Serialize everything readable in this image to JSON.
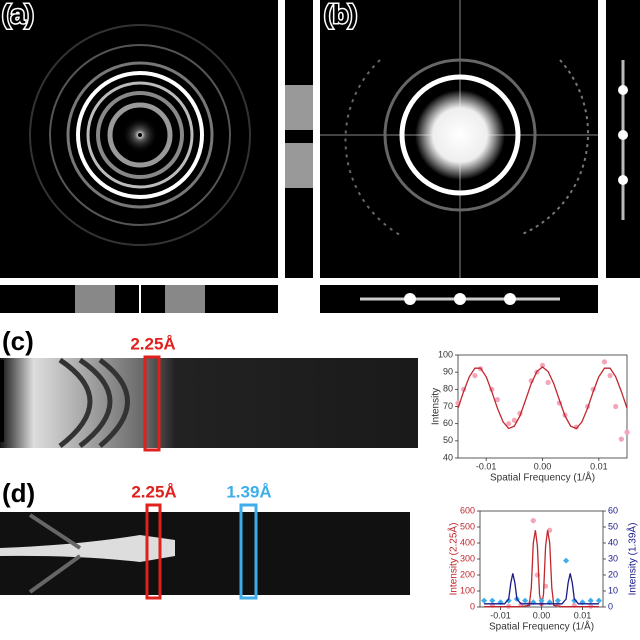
{
  "figure": {
    "panels": [
      "(a)",
      "(b)",
      "(c)",
      "(d)"
    ],
    "markers_c": [
      "2.25Å"
    ],
    "markers_d": [
      "2.25Å",
      "1.39Å"
    ]
  },
  "chart_data": [
    {
      "type": "line",
      "xlabel": "Spatial Frequency (1/Å)",
      "ylabel": "Intensity",
      "y_color": "#333333",
      "xlim": [
        -0.015,
        0.015
      ],
      "ylim": [
        40,
        100
      ],
      "xticks": [
        {
          "value": -0.01,
          "label": "-0.01"
        },
        {
          "value": 0,
          "label": "0.00"
        },
        {
          "value": 0.01,
          "label": "0.01"
        }
      ],
      "yticks": [
        40,
        50,
        60,
        70,
        80,
        90,
        100
      ],
      "series": [
        {
          "mode": "markers",
          "marker": "circle",
          "color": "#f4a6b8",
          "x": [
            -0.015,
            -0.014,
            -0.012,
            -0.011,
            -0.009,
            -0.008,
            -0.006,
            -0.005,
            -0.004,
            -0.002,
            -0.001,
            0,
            0.001,
            0.003,
            0.004,
            0.006,
            0.008,
            0.009,
            0.011,
            0.012,
            0.013,
            0.014,
            0.015
          ],
          "values": [
            72,
            80,
            88,
            92,
            80,
            74,
            60,
            62,
            66,
            85,
            90,
            94,
            84,
            72,
            65,
            58,
            70,
            80,
            96,
            88,
            70,
            51,
            55
          ]
        },
        {
          "mode": "line",
          "color": "#c0272d",
          "x": [
            -0.015,
            -0.014,
            -0.013,
            -0.012,
            -0.011,
            -0.01,
            -0.009,
            -0.008,
            -0.007,
            -0.006,
            -0.005,
            -0.004,
            -0.003,
            -0.002,
            -0.001,
            0,
            0.001,
            0.002,
            0.003,
            0.004,
            0.005,
            0.006,
            0.007,
            0.008,
            0.009,
            0.01,
            0.011,
            0.012,
            0.013,
            0.014,
            0.015
          ],
          "values": [
            69.0,
            78.7,
            87.3,
            92.3,
            92.3,
            87.3,
            78.7,
            69.0,
            61.0,
            57.2,
            58.5,
            64.6,
            73.8,
            83.3,
            90.4,
            93,
            90.4,
            83.3,
            73.8,
            64.6,
            58.5,
            57.2,
            61.0,
            69.0,
            78.7,
            87.3,
            92.3,
            92.3,
            87.3,
            78.7,
            69.0
          ]
        }
      ]
    },
    {
      "type": "line",
      "xlabel": "Spatial Frequency (1/Å)",
      "ylabel": "Intensity (2.25Å)",
      "y2label": "Intensity (1.39Å)",
      "y_color": "#c0272d",
      "y2_color": "#1a1a8c",
      "xlim": [
        -0.015,
        0.015
      ],
      "ylim": [
        0,
        600
      ],
      "y2lim": [
        0,
        60
      ],
      "xticks": [
        {
          "value": -0.01,
          "label": "-0.01"
        },
        {
          "value": 0,
          "label": "0.00"
        },
        {
          "value": 0.01,
          "label": "0.01"
        }
      ],
      "yticks": [
        0,
        100,
        200,
        300,
        400,
        500,
        600
      ],
      "y2ticks": [
        0,
        10,
        20,
        30,
        40,
        50,
        60
      ],
      "series": [
        {
          "mode": "markers",
          "marker": "circle",
          "color": "#f4a6b8",
          "x": [
            -0.012,
            -0.008,
            -0.005,
            -0.003,
            -0.002,
            -0.001,
            0,
            0.001,
            0.002,
            0.004,
            0.008,
            0.012
          ],
          "values": [
            10,
            5,
            15,
            20,
            540,
            200,
            20,
            130,
            480,
            15,
            10,
            5
          ]
        },
        {
          "mode": "line",
          "color": "#c0272d",
          "x": [
            -0.014,
            -0.01,
            -0.005,
            -0.003,
            -0.0025,
            -0.002,
            -0.0015,
            -0.001,
            -0.0005,
            0,
            0.0005,
            0.001,
            0.0015,
            0.002,
            0.0025,
            0.003,
            0.005,
            0.01,
            0.014
          ],
          "values": [
            2,
            2,
            2,
            10,
            120,
            400,
            480,
            380,
            80,
            5,
            80,
            380,
            480,
            400,
            120,
            10,
            2,
            2,
            2
          ]
        },
        {
          "mode": "markers",
          "marker": "diamond",
          "color": "#3daee9",
          "axis": "y2",
          "x": [
            -0.014,
            -0.012,
            -0.01,
            -0.008,
            -0.006,
            -0.004,
            -0.002,
            0,
            0.002,
            0.004,
            0.006,
            0.008,
            0.01,
            0.012,
            0.014
          ],
          "values": [
            4,
            4,
            3,
            4,
            5,
            4,
            3,
            4,
            3,
            4,
            29,
            4,
            3,
            4,
            4
          ]
        },
        {
          "mode": "line",
          "color": "#1a1a8c",
          "axis": "y2",
          "x": [
            -0.014,
            -0.01,
            -0.009,
            -0.008,
            -0.0075,
            -0.007,
            -0.0065,
            -0.006,
            -0.005,
            0,
            0.005,
            0.006,
            0.0065,
            0.007,
            0.0075,
            0.008,
            0.009,
            0.01,
            0.014
          ],
          "values": [
            2,
            2,
            2,
            5,
            15,
            21,
            15,
            5,
            2,
            2,
            2,
            5,
            15,
            21,
            15,
            5,
            2,
            2,
            2
          ]
        }
      ]
    }
  ]
}
